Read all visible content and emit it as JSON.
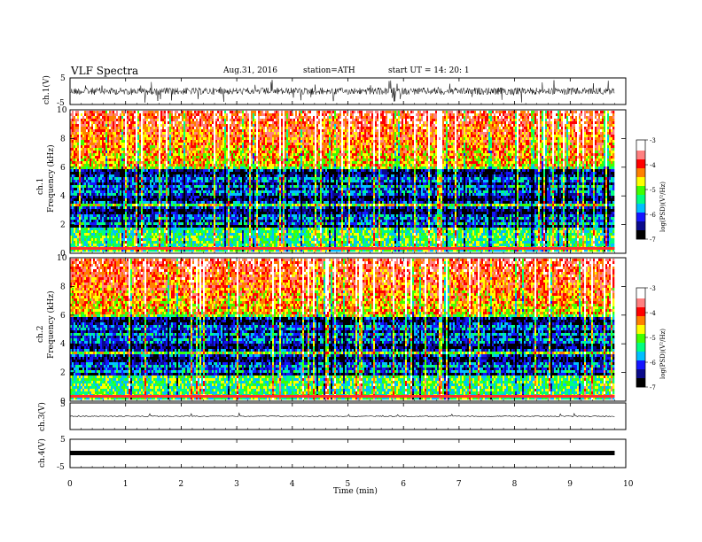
{
  "header": {
    "title": "VLF  Spectra",
    "date": "Aug.31, 2016",
    "station": "station=ATH",
    "start": "start  UT  =    14: 20: 1"
  },
  "colors": {
    "frame": "#000000",
    "colormap": [
      "#000000",
      "#0a0a8a",
      "#1515ff",
      "#00bfff",
      "#00ff80",
      "#40ff00",
      "#ffff00",
      "#ff8000",
      "#ff0000",
      "#ff8080",
      "#ffffff"
    ]
  },
  "chart_data": [
    {
      "id": "ch1-waveform",
      "type": "line",
      "ylabel": "ch.1(V)",
      "ylim": [
        -5,
        5
      ],
      "yticks": [
        "5",
        "-5"
      ],
      "xlim": [
        0,
        10
      ],
      "description_of_series": "dense noisy waveform, amplitude mostly within about ±1.5 V with frequent spikes toward ±4 V"
    },
    {
      "id": "ch1-spectrogram",
      "type": "heatmap",
      "ylabel": "Frequency  (kHz)",
      "channel_label": "ch.1",
      "ylim": [
        0,
        10
      ],
      "yticks": [
        "0",
        "2",
        "4",
        "6",
        "8",
        "10"
      ],
      "xlim": [
        0,
        9.8
      ],
      "colorbar": {
        "label": "log(PSD)(V²/Hz)",
        "ticks": [
          "-3",
          "-4",
          "-5",
          "-6",
          "-7"
        ],
        "range": [
          -7,
          -3
        ]
      }
    },
    {
      "id": "ch2-spectrogram",
      "type": "heatmap",
      "ylabel": "Frequency  (kHz)",
      "channel_label": "ch.2",
      "ylim": [
        0,
        10
      ],
      "yticks": [
        "0",
        "2",
        "4",
        "6",
        "8",
        "10"
      ],
      "xlim": [
        0,
        9.8
      ],
      "colorbar": {
        "label": "log(PSD)(V²/Hz)",
        "ticks": [
          "-3",
          "-4",
          "-5",
          "-6",
          "-7"
        ],
        "range": [
          -7,
          -3
        ]
      }
    },
    {
      "id": "ch3-waveform",
      "type": "line",
      "ylabel": "ch.3(V)",
      "ylim": [
        -5,
        5
      ],
      "yticks": [
        "5"
      ],
      "description_of_series": "near-flat trace close to 0 V with small spikes"
    },
    {
      "id": "ch4-waveform",
      "type": "line",
      "ylabel": "ch.4(V)",
      "ylim": [
        -5,
        5
      ],
      "yticks": [
        "5",
        "-5"
      ],
      "description_of_series": "thick flat band at about 0 V"
    }
  ],
  "xaxis": {
    "label": "Time  (min)",
    "ticks": [
      "0",
      "1",
      "2",
      "3",
      "4",
      "5",
      "6",
      "7",
      "8",
      "9",
      "10"
    ],
    "range": [
      0,
      10
    ]
  }
}
